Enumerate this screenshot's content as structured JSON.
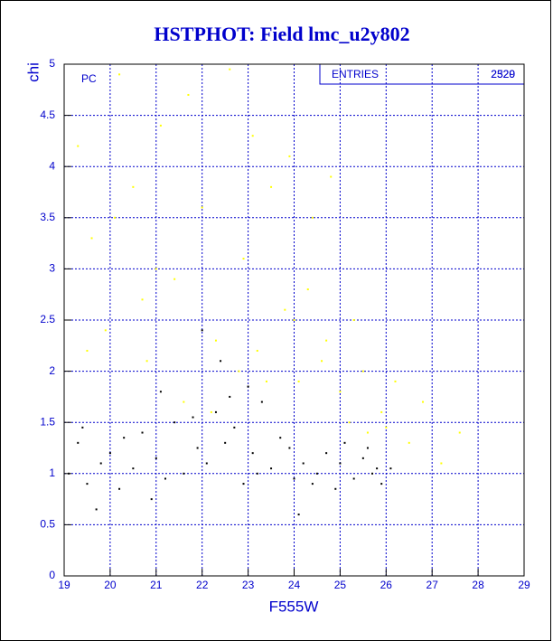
{
  "chart_data": {
    "type": "scatter",
    "title": "HSTPHOT: Field lmc_u2y802",
    "xlabel": "F555W",
    "ylabel": "chi",
    "annotation": "PC",
    "stats": {
      "label": "ENTRIES",
      "values": [
        "2529",
        "2320"
      ]
    },
    "xlim": [
      19,
      29
    ],
    "ylim": [
      0,
      5
    ],
    "xticks": [
      19,
      20,
      21,
      22,
      23,
      24,
      25,
      26,
      27,
      28,
      29
    ],
    "yticks": [
      0,
      0.5,
      1,
      1.5,
      2,
      2.5,
      3,
      3.5,
      4,
      4.5,
      5
    ],
    "grid": true,
    "series": [
      {
        "color": "#ffff00",
        "x": [
          19.3,
          19.6,
          19.9,
          20.2,
          20.5,
          20.8,
          21.1,
          21.4,
          21.7,
          22.0,
          22.3,
          22.6,
          22.9,
          23.2,
          23.5,
          23.8,
          24.1,
          24.4,
          24.7,
          25.0,
          25.3,
          25.6,
          25.9,
          26.2,
          26.5,
          26.8,
          27.2,
          27.6,
          19.5,
          20.7,
          21.6,
          22.8,
          23.4,
          24.0,
          24.6,
          25.2,
          23.9,
          24.8,
          22.2,
          21.0,
          20.1,
          23.1,
          24.3,
          25.5,
          26.0
        ],
        "y": [
          4.2,
          3.3,
          2.4,
          4.9,
          3.8,
          2.1,
          4.4,
          2.9,
          4.7,
          3.6,
          2.3,
          4.95,
          3.1,
          2.2,
          3.8,
          2.6,
          1.9,
          3.5,
          2.3,
          1.8,
          2.5,
          1.4,
          1.6,
          1.9,
          1.3,
          1.7,
          1.1,
          1.4,
          2.2,
          2.7,
          1.7,
          2.0,
          1.9,
          2.5,
          2.1,
          1.5,
          4.1,
          3.9,
          1.6,
          3.0,
          3.5,
          4.3,
          2.8,
          2.0,
          1.45
        ]
      },
      {
        "color": "#000000",
        "x": [
          19.1,
          19.3,
          19.5,
          19.8,
          20.0,
          20.2,
          20.5,
          20.7,
          21.0,
          21.2,
          21.4,
          21.6,
          21.9,
          22.1,
          22.3,
          22.5,
          22.7,
          22.9,
          23.1,
          23.3,
          23.5,
          23.7,
          24.0,
          24.2,
          24.5,
          24.7,
          24.9,
          25.1,
          25.3,
          25.5,
          25.7,
          25.9,
          26.1,
          19.4,
          20.3,
          21.1,
          21.8,
          22.6,
          23.2,
          23.9,
          24.4,
          25.0,
          25.6,
          22.0,
          22.4,
          23.0,
          20.9,
          19.7,
          24.1,
          25.8
        ],
        "y": [
          1.0,
          1.3,
          0.9,
          1.1,
          1.2,
          0.85,
          1.05,
          1.4,
          1.15,
          0.95,
          1.5,
          1.0,
          1.25,
          1.1,
          1.6,
          1.3,
          1.45,
          0.9,
          1.2,
          1.7,
          1.05,
          1.35,
          0.95,
          1.1,
          1.0,
          1.2,
          0.85,
          1.3,
          0.95,
          1.15,
          1.0,
          0.9,
          1.05,
          1.45,
          1.35,
          1.8,
          1.55,
          1.75,
          1.0,
          1.25,
          0.9,
          1.1,
          1.25,
          2.4,
          2.1,
          1.85,
          0.75,
          0.65,
          0.6,
          1.05
        ]
      }
    ]
  }
}
